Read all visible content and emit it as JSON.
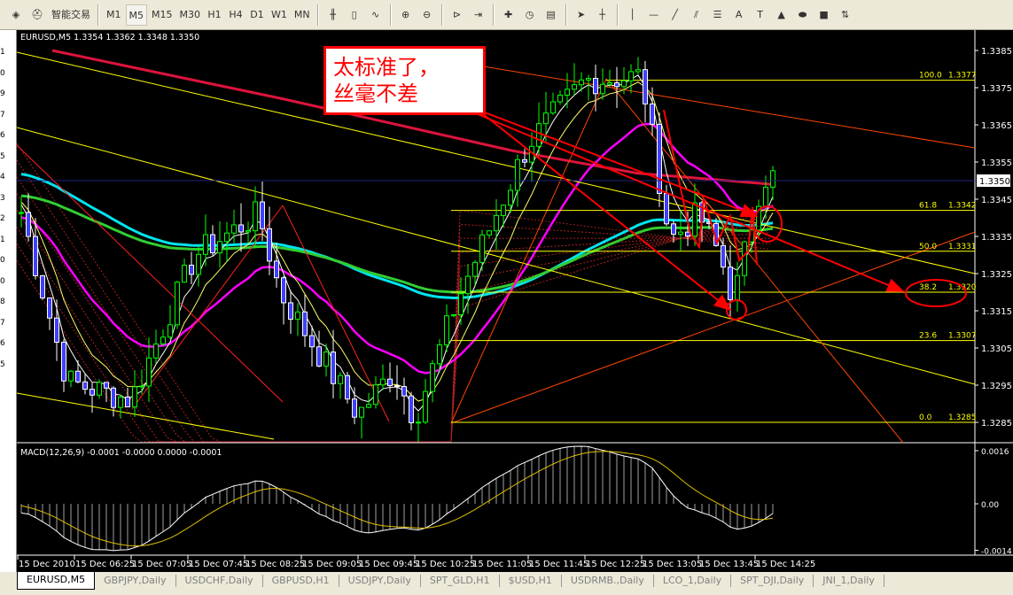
{
  "toolbar": {
    "app_label": "智能交易",
    "timeframes": [
      "M1",
      "M5",
      "M15",
      "M30",
      "H1",
      "H4",
      "D1",
      "W1",
      "MN"
    ],
    "selected_timeframe": "M5",
    "icons": [
      "alert-icon",
      "expert-advisor-icon",
      "bar-chart-icon",
      "candlestick-icon",
      "line-chart-icon",
      "zoom-in-icon",
      "zoom-out-icon",
      "chart-shift-icon",
      "autoscroll-icon",
      "new-indicator-icon",
      "periods-icon",
      "templates-icon",
      "cursor-icon",
      "crosshair-icon",
      "vertical-line-icon",
      "horizontal-line-icon",
      "trendline-icon",
      "equidistant-channel-icon",
      "fibonacci-icon",
      "text-icon",
      "text-label-icon",
      "triangle-icon",
      "ellipse-icon",
      "rectangle-icon",
      "arrows-icon"
    ]
  },
  "navigator_digits": [
    "1",
    "0",
    "9",
    "7",
    "6",
    "5",
    "4",
    "3",
    "2",
    "1",
    "0",
    "0",
    "8",
    "7",
    "6",
    "5"
  ],
  "chart": {
    "header": "EURUSD,M5  1.3354 1.3362 1.3348 1.3350",
    "symbol": "EURUSD,M5",
    "ohlc": [
      "1.3354",
      "1.3362",
      "1.3348",
      "1.3350"
    ],
    "current_price": "1.3350",
    "price_ticks": [
      "1.3385",
      "1.3375",
      "1.3365",
      "1.3355",
      "1.3345",
      "1.3335",
      "1.3325",
      "1.3315",
      "1.3305",
      "1.3295",
      "1.3285"
    ],
    "time_ticks": [
      "15 Dec 2010",
      "15 Dec 06:25",
      "15 Dec 07:05",
      "15 Dec 07:45",
      "15 Dec 08:25",
      "15 Dec 09:05",
      "15 Dec 09:45",
      "15 Dec 10:25",
      "15 Dec 11:05",
      "15 Dec 11:45",
      "15 Dec 12:25",
      "15 Dec 13:05",
      "15 Dec 13:45",
      "15 Dec 14:25"
    ],
    "fibonacci": [
      {
        "level": "100.0",
        "price": "1.3377"
      },
      {
        "level": "61.8",
        "price": "1.3342"
      },
      {
        "level": "50.0",
        "price": "1.3331"
      },
      {
        "level": "38.2",
        "price": "1.3320"
      },
      {
        "level": "23.6",
        "price": "1.3307"
      },
      {
        "level": "0.0",
        "price": "1.3285"
      }
    ],
    "annotation": {
      "line1": "太标准了，",
      "line2": "丝毫不差"
    },
    "colors": {
      "bull": "#00ff00",
      "bear": "#ffffff",
      "candle_body": "#4040ff",
      "fib": "#ffff00",
      "annotation": "#ff0000",
      "ma_fast": "#ff00ff",
      "ma_slow1": "#00e5ee",
      "ma_slow2": "#32cd32",
      "ma_long": "#dc143c"
    }
  },
  "macd": {
    "header": "MACD(12,26,9) -0.0001 -0.0000 0.0000 -0.0001",
    "ticks": [
      "0.0016",
      "0.00",
      "-0.0014"
    ]
  },
  "chart_data": {
    "type": "candlestick",
    "timeframe": "M5",
    "price_range": [
      1.3282,
      1.3388
    ],
    "price_path": [
      [
        "05:45",
        1.3345
      ],
      [
        "06:20",
        1.3296
      ],
      [
        "07:05",
        1.3291
      ],
      [
        "07:50",
        1.333
      ],
      [
        "08:35",
        1.3341
      ],
      [
        "08:50",
        1.332
      ],
      [
        "09:45",
        1.3287
      ],
      [
        "10:10",
        1.3299
      ],
      [
        "10:25",
        1.3286
      ],
      [
        "10:55",
        1.3318
      ],
      [
        "11:45",
        1.336
      ],
      [
        "12:25",
        1.3377
      ],
      [
        "13:05",
        1.3378
      ],
      [
        "13:25",
        1.3334
      ],
      [
        "13:45",
        1.3341
      ],
      [
        "14:00",
        1.333
      ],
      [
        "14:10",
        1.3318
      ],
      [
        "14:30",
        1.3351
      ]
    ]
  },
  "tabs": [
    "EURUSD,M5",
    "GBPJPY,Daily",
    "USDCHF,Daily",
    "GBPUSD,H1",
    "USDJPY,Daily",
    "SPT_GLD,H1",
    "$USD,H1",
    "USDRMB.,Daily",
    "LCO_1,Daily",
    "SPT_DJI,Daily",
    "JNI_1,Daily"
  ],
  "active_tab": "EURUSD,M5"
}
